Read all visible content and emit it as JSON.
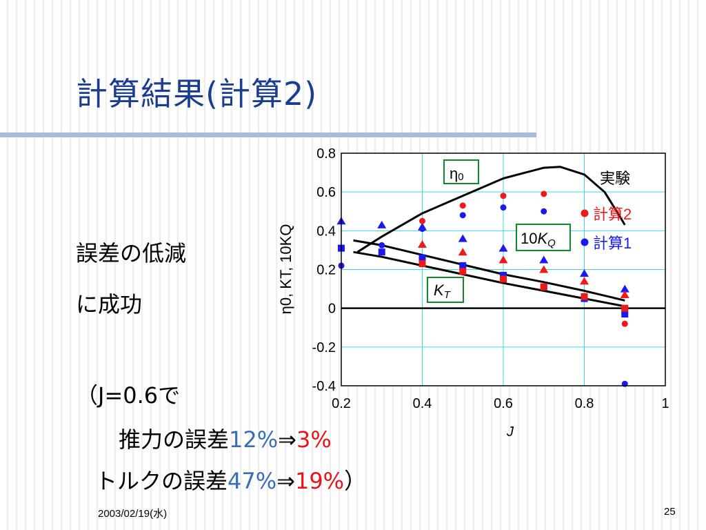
{
  "slide": {
    "title": "計算結果(計算2)",
    "lines": {
      "l1": "誤差の低減",
      "l2": "に成功",
      "l3": "（J=0.6で",
      "l4_label": "推力の誤差",
      "l4_old": "12%",
      "arrow": "⇒",
      "l4_new": "3%",
      "l5_label": "トルクの誤差",
      "l5_old": "47%",
      "l5_new": "19%",
      "l5_close": "）"
    },
    "footer": {
      "date": "2003/02/19(水)",
      "page": "25"
    }
  },
  "colors": {
    "title": "#1a3d8f",
    "highlight_blue": "#3b6db3",
    "highlight_red": "#e8141b",
    "calc1": "#1a1aee",
    "calc2": "#ee1a1a",
    "grid": "#39d8e6",
    "label_box_green": "#0a8a2a"
  },
  "chart_data": {
    "type": "scatter",
    "xlim": [
      0.2,
      1
    ],
    "ylim": [
      -0.4,
      0.8
    ],
    "x_ticks": [
      "0.2",
      "0.4",
      "0.6",
      "0.8",
      "1"
    ],
    "y_ticks": [
      "0.8",
      "0.6",
      "0.4",
      "0.2",
      "0",
      "-0.2",
      "-0.4"
    ],
    "xlabel": "J",
    "ylabel": "η0, KT, 10KQ",
    "grid": true,
    "legend_position": "right",
    "legend": {
      "experiment": "実験",
      "calc2": "計算2",
      "calc1": "計算1"
    },
    "curve_labels": {
      "eta": {
        "main": "η",
        "sub": "0"
      },
      "kq": {
        "prefix": "10",
        "main": "K",
        "sub": "Q"
      },
      "kt": {
        "main": "K",
        "sub": "T"
      }
    },
    "experiment_curves": [
      {
        "id": "eta0",
        "points": [
          [
            0.24,
            0.29
          ],
          [
            0.3,
            0.37
          ],
          [
            0.4,
            0.49
          ],
          [
            0.5,
            0.58
          ],
          [
            0.6,
            0.67
          ],
          [
            0.7,
            0.725
          ],
          [
            0.74,
            0.73
          ],
          [
            0.8,
            0.69
          ],
          [
            0.85,
            0.6
          ],
          [
            0.88,
            0.5
          ],
          [
            0.9,
            0.43
          ]
        ]
      },
      {
        "id": "10KQ",
        "points": [
          [
            0.23,
            0.35
          ],
          [
            0.3,
            0.325
          ],
          [
            0.4,
            0.275
          ],
          [
            0.5,
            0.225
          ],
          [
            0.6,
            0.175
          ],
          [
            0.7,
            0.135
          ],
          [
            0.8,
            0.09
          ],
          [
            0.9,
            0.04
          ]
        ]
      },
      {
        "id": "KT",
        "points": [
          [
            0.23,
            0.29
          ],
          [
            0.3,
            0.265
          ],
          [
            0.4,
            0.22
          ],
          [
            0.5,
            0.175
          ],
          [
            0.6,
            0.13
          ],
          [
            0.7,
            0.09
          ],
          [
            0.8,
            0.05
          ],
          [
            0.9,
            0.01
          ]
        ]
      }
    ],
    "series": [
      {
        "name": "計算1",
        "marker": "circle",
        "points": [
          [
            0.2,
            0.22
          ],
          [
            0.3,
            0.325
          ],
          [
            0.4,
            0.41
          ],
          [
            0.5,
            0.48
          ],
          [
            0.6,
            0.52
          ],
          [
            0.7,
            0.5
          ],
          [
            0.8,
            0.05
          ],
          [
            0.9,
            -0.39
          ]
        ]
      },
      {
        "name": "計算1",
        "marker": "triangle",
        "points": [
          [
            0.2,
            0.45
          ],
          [
            0.3,
            0.43
          ],
          [
            0.4,
            0.42
          ],
          [
            0.5,
            0.36
          ],
          [
            0.6,
            0.31
          ],
          [
            0.7,
            0.25
          ],
          [
            0.8,
            0.18
          ],
          [
            0.9,
            0.1
          ]
        ]
      },
      {
        "name": "計算1",
        "marker": "square",
        "points": [
          [
            0.2,
            0.31
          ],
          [
            0.3,
            0.29
          ],
          [
            0.4,
            0.26
          ],
          [
            0.5,
            0.22
          ],
          [
            0.6,
            0.17
          ],
          [
            0.7,
            0.11
          ],
          [
            0.8,
            0.05
          ],
          [
            0.9,
            -0.03
          ]
        ]
      },
      {
        "name": "計算2",
        "marker": "circle",
        "points": [
          [
            0.4,
            0.45
          ],
          [
            0.5,
            0.53
          ],
          [
            0.6,
            0.58
          ],
          [
            0.7,
            0.59
          ],
          [
            0.9,
            -0.08
          ]
        ]
      },
      {
        "name": "計算2",
        "marker": "triangle",
        "points": [
          [
            0.4,
            0.33
          ],
          [
            0.5,
            0.29
          ],
          [
            0.6,
            0.25
          ],
          [
            0.7,
            0.2
          ],
          [
            0.8,
            0.14
          ],
          [
            0.9,
            0.07
          ]
        ]
      },
      {
        "name": "計算2",
        "marker": "square",
        "points": [
          [
            0.4,
            0.23
          ],
          [
            0.5,
            0.19
          ],
          [
            0.6,
            0.15
          ],
          [
            0.7,
            0.11
          ],
          [
            0.8,
            0.06
          ],
          [
            0.9,
            0.0
          ]
        ]
      }
    ]
  }
}
